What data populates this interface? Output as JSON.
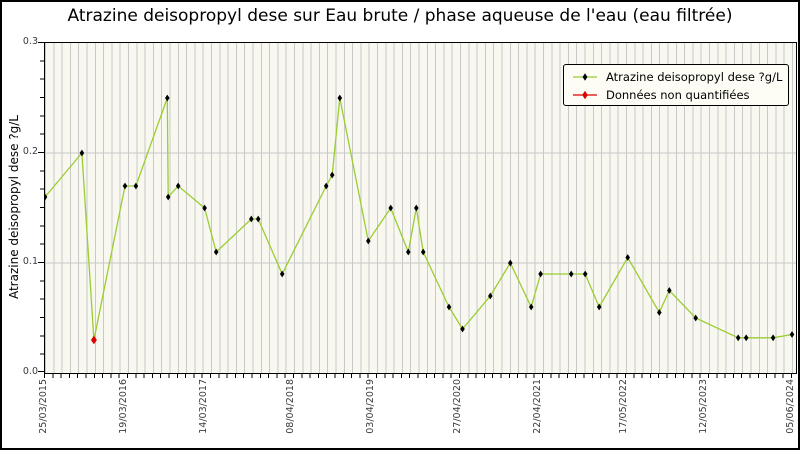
{
  "figure": {
    "title": "Atrazine deisopropyl dese sur Eau brute / phase aqueuse de l'eau (eau filtrée)"
  },
  "axes": {
    "ylabel": "Atrazine deisopropyl dese ?g/L",
    "background_color": "#f8f8f0",
    "grid_color": "#c9c9c9",
    "frame_color": "#000000"
  },
  "legend": {
    "entries": [
      {
        "label": "Atrazine deisopropyl dese ?g/L",
        "line_color": "#9ACD32",
        "marker": "black-thin-diamond",
        "marker_color": "#000000"
      },
      {
        "label": "Données non quantifiées",
        "line_color": "#DE0000",
        "marker": "red-thin-diamond",
        "marker_color": "#DE0000"
      }
    ]
  },
  "chart_data": {
    "type": "line",
    "title": "Atrazine deisopropyl dese sur Eau brute / phase aqueuse de l'eau (eau filtrée)",
    "xlabel": "",
    "ylabel": "Atrazine deisopropyl dese ?g/L",
    "ylim": [
      0.0,
      0.3
    ],
    "yticks": [
      0.0,
      0.1,
      0.2,
      0.3
    ],
    "grid": "horizontal-major and vertical-minor stripes",
    "legend_position": "upper right",
    "xticklabels": [
      "25/03/2015",
      "19/03/2016",
      "14/03/2017",
      "08/04/2018",
      "03/04/2019",
      "27/04/2020",
      "22/04/2021",
      "17/05/2022",
      "12/05/2023",
      "05/06/2024"
    ],
    "unquantified_color": "#DE0000",
    "series": [
      {
        "name": "Atrazine deisopropyl dese ?g/L",
        "color": "#9ACD32",
        "points": [
          {
            "date": "2015-03-25",
            "value": 0.16,
            "quantified": true
          },
          {
            "date": "2015-09-07",
            "value": 0.2,
            "quantified": true
          },
          {
            "date": "2015-10-31",
            "value": 0.03,
            "quantified": false
          },
          {
            "date": "2016-03-19",
            "value": 0.17,
            "quantified": true
          },
          {
            "date": "2016-05-07",
            "value": 0.17,
            "quantified": true
          },
          {
            "date": "2016-09-25",
            "value": 0.25,
            "quantified": true
          },
          {
            "date": "2016-09-29",
            "value": 0.16,
            "quantified": true
          },
          {
            "date": "2016-11-13",
            "value": 0.17,
            "quantified": true
          },
          {
            "date": "2017-03-12",
            "value": 0.15,
            "quantified": true
          },
          {
            "date": "2017-05-03",
            "value": 0.11,
            "quantified": true
          },
          {
            "date": "2017-10-08",
            "value": 0.14,
            "quantified": true
          },
          {
            "date": "2017-11-08",
            "value": 0.14,
            "quantified": true
          },
          {
            "date": "2018-02-24",
            "value": 0.09,
            "quantified": true
          },
          {
            "date": "2018-09-10",
            "value": 0.17,
            "quantified": true
          },
          {
            "date": "2018-10-07",
            "value": 0.18,
            "quantified": true
          },
          {
            "date": "2018-11-10",
            "value": 0.25,
            "quantified": true
          },
          {
            "date": "2019-03-18",
            "value": 0.12,
            "quantified": true
          },
          {
            "date": "2019-06-27",
            "value": 0.15,
            "quantified": true
          },
          {
            "date": "2019-09-14",
            "value": 0.11,
            "quantified": true
          },
          {
            "date": "2019-10-20",
            "value": 0.15,
            "quantified": true
          },
          {
            "date": "2019-11-20",
            "value": 0.11,
            "quantified": true
          },
          {
            "date": "2020-03-15",
            "value": 0.06,
            "quantified": true
          },
          {
            "date": "2020-05-15",
            "value": 0.04,
            "quantified": true
          },
          {
            "date": "2020-09-17",
            "value": 0.07,
            "quantified": true
          },
          {
            "date": "2020-12-16",
            "value": 0.1,
            "quantified": true
          },
          {
            "date": "2021-03-20",
            "value": 0.06,
            "quantified": true
          },
          {
            "date": "2021-05-01",
            "value": 0.09,
            "quantified": true
          },
          {
            "date": "2021-09-16",
            "value": 0.09,
            "quantified": true
          },
          {
            "date": "2021-11-18",
            "value": 0.09,
            "quantified": true
          },
          {
            "date": "2022-01-20",
            "value": 0.06,
            "quantified": true
          },
          {
            "date": "2022-05-28",
            "value": 0.105,
            "quantified": true
          },
          {
            "date": "2022-10-17",
            "value": 0.055,
            "quantified": true
          },
          {
            "date": "2022-12-01",
            "value": 0.075,
            "quantified": true
          },
          {
            "date": "2023-03-30",
            "value": 0.05,
            "quantified": true
          },
          {
            "date": "2023-10-07",
            "value": 0.032,
            "quantified": true
          },
          {
            "date": "2023-11-12",
            "value": 0.032,
            "quantified": true
          },
          {
            "date": "2024-03-12",
            "value": 0.032,
            "quantified": true
          },
          {
            "date": "2024-06-05",
            "value": 0.035,
            "quantified": true
          }
        ]
      }
    ]
  }
}
